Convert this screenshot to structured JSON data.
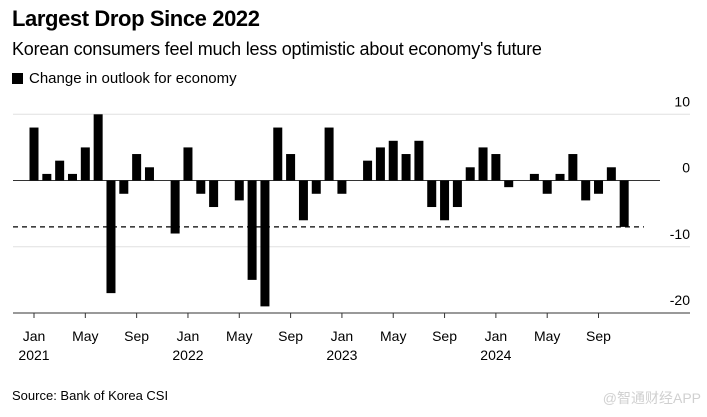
{
  "header": {
    "title": "Largest Drop Since 2022",
    "subtitle": "Korean consumers feel much less optimistic about economy's future"
  },
  "footer": {
    "source": "Source: Bank of Korea CSI",
    "watermark": "@智通财经APP"
  },
  "chart_data": {
    "type": "bar",
    "title": "Largest Drop Since 2022",
    "subtitle": "Korean consumers feel much less optimistic about economy's future",
    "xlabel": "",
    "ylabel": "",
    "legend": {
      "entries": [
        "Change in outlook for economy"
      ],
      "placement": "top-left"
    },
    "grid": true,
    "ylim": [
      -20,
      10
    ],
    "yticks": [
      10,
      0,
      -10,
      -20
    ],
    "ytick_labels": [
      "10",
      "0",
      "-10",
      "-20"
    ],
    "y_axis_side": "right",
    "reference_line": {
      "value": -7,
      "style": "dashed"
    },
    "xticks": [
      {
        "index": 0,
        "month": "Jan",
        "year": "2021"
      },
      {
        "index": 4,
        "month": "May",
        "year": ""
      },
      {
        "index": 8,
        "month": "Sep",
        "year": ""
      },
      {
        "index": 12,
        "month": "Jan",
        "year": "2022"
      },
      {
        "index": 16,
        "month": "May",
        "year": ""
      },
      {
        "index": 20,
        "month": "Sep",
        "year": ""
      },
      {
        "index": 24,
        "month": "Jan",
        "year": "2023"
      },
      {
        "index": 28,
        "month": "May",
        "year": ""
      },
      {
        "index": 32,
        "month": "Sep",
        "year": ""
      },
      {
        "index": 36,
        "month": "Jan",
        "year": "2024"
      },
      {
        "index": 40,
        "month": "May",
        "year": ""
      },
      {
        "index": 44,
        "month": "Sep",
        "year": ""
      }
    ],
    "categories": [
      "2021-01",
      "2021-02",
      "2021-03",
      "2021-04",
      "2021-05",
      "2021-06",
      "2021-07",
      "2021-08",
      "2021-09",
      "2021-10",
      "2021-11",
      "2021-12",
      "2022-01",
      "2022-02",
      "2022-03",
      "2022-04",
      "2022-05",
      "2022-06",
      "2022-07",
      "2022-08",
      "2022-09",
      "2022-10",
      "2022-11",
      "2022-12",
      "2023-01",
      "2023-02",
      "2023-03",
      "2023-04",
      "2023-05",
      "2023-06",
      "2023-07",
      "2023-08",
      "2023-09",
      "2023-10",
      "2023-11",
      "2023-12",
      "2024-01",
      "2024-02",
      "2024-03",
      "2024-04",
      "2024-05",
      "2024-06",
      "2024-07",
      "2024-08",
      "2024-09",
      "2024-10",
      "2024-11"
    ],
    "series": [
      {
        "name": "Change in outlook for economy",
        "color": "#000000",
        "values": [
          8,
          1,
          3,
          1,
          5,
          10,
          -17,
          -2,
          4,
          2,
          0,
          -8,
          5,
          -2,
          -4,
          0,
          -3,
          -15,
          -19,
          8,
          4,
          -6,
          -2,
          8,
          -2,
          0,
          3,
          5,
          6,
          4,
          6,
          -4,
          -6,
          -4,
          2,
          5,
          4,
          -1,
          0,
          1,
          -2,
          1,
          4,
          -3,
          -2,
          2,
          -7
        ]
      }
    ],
    "colors": {
      "bar": "#000000",
      "grid": "#e0e0e0",
      "axis": "#333333",
      "zero_line": "#333333"
    }
  }
}
